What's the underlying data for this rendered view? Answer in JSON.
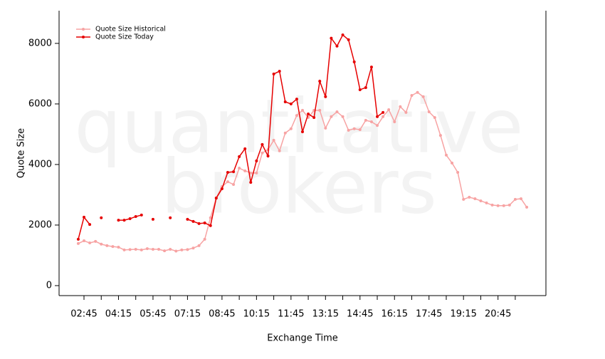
{
  "chart_data": {
    "type": "line",
    "watermark": [
      "quantitative",
      "brokers"
    ],
    "x_label": "Exchange Time",
    "y_label": "Quote Size",
    "x": [
      150,
      165,
      180,
      195,
      210,
      225,
      240,
      255,
      270,
      285,
      300,
      315,
      330,
      345,
      360,
      375,
      390,
      405,
      420,
      435,
      450,
      465,
      480,
      495,
      510,
      525,
      540,
      555,
      570,
      585,
      600,
      615,
      630,
      645,
      660,
      675,
      690,
      705,
      720,
      735,
      750,
      765,
      780,
      795,
      810,
      825,
      840,
      855,
      870,
      885,
      900,
      915,
      930,
      945,
      960,
      975,
      990,
      1005,
      1020,
      1035,
      1050,
      1065,
      1080,
      1095,
      1110,
      1125,
      1140,
      1155,
      1170,
      1185,
      1200,
      1215,
      1230,
      1245,
      1260,
      1275,
      1290,
      1305,
      1320
    ],
    "series": [
      {
        "name": "Quote Size Historical",
        "color": "#f7a3a3",
        "values": [
          1390,
          1480,
          1410,
          1460,
          1370,
          1320,
          1290,
          1270,
          1180,
          1190,
          1200,
          1180,
          1220,
          1200,
          1200,
          1150,
          1200,
          1140,
          1180,
          1190,
          1240,
          1320,
          1530,
          2240,
          2900,
          3270,
          3430,
          3340,
          3880,
          3790,
          3720,
          3720,
          4380,
          4490,
          4800,
          4450,
          5040,
          5180,
          5620,
          5790,
          5550,
          5790,
          5790,
          5200,
          5580,
          5740,
          5580,
          5130,
          5180,
          5150,
          5460,
          5410,
          5290,
          5580,
          5810,
          5410,
          5910,
          5720,
          6280,
          6380,
          6240,
          5740,
          5550,
          4960,
          4310,
          4050,
          3740,
          2850,
          2920,
          2870,
          2800,
          2730,
          2660,
          2640,
          2640,
          2660,
          2850,
          2870,
          2590
        ]
      },
      {
        "name": "Quote Size Today",
        "color": "#e60000",
        "values": [
          1530,
          2260,
          2020,
          null,
          2240,
          null,
          null,
          2160,
          2160,
          2210,
          2280,
          2330,
          null,
          2190,
          null,
          null,
          2240,
          null,
          null,
          2190,
          2120,
          2050,
          2070,
          1980,
          2890,
          3200,
          3740,
          3760,
          4260,
          4520,
          3410,
          4120,
          4660,
          4280,
          6990,
          7080,
          6070,
          6000,
          6160,
          5080,
          5670,
          5550,
          6750,
          6240,
          8170,
          7910,
          8280,
          8120,
          7390,
          6470,
          6540,
          7220,
          5580,
          5720,
          null,
          null,
          null,
          null,
          null,
          null,
          null,
          null,
          null,
          null,
          null,
          null,
          null,
          null,
          null,
          null,
          null,
          null,
          null,
          null,
          null,
          null,
          null,
          null,
          null
        ]
      }
    ],
    "xlim": [
      100,
      1370
    ],
    "xticks": [
      {
        "value": 165,
        "label": "02:45"
      },
      {
        "value": 255,
        "label": "04:15"
      },
      {
        "value": 345,
        "label": "05:45"
      },
      {
        "value": 435,
        "label": "07:15"
      },
      {
        "value": 525,
        "label": "08:45"
      },
      {
        "value": 615,
        "label": "10:15"
      },
      {
        "value": 705,
        "label": "11:45"
      },
      {
        "value": 795,
        "label": "13:15"
      },
      {
        "value": 885,
        "label": "14:45"
      },
      {
        "value": 975,
        "label": "16:15"
      },
      {
        "value": 1065,
        "label": "17:45"
      },
      {
        "value": 1155,
        "label": "19:15"
      },
      {
        "value": 1245,
        "label": "20:45"
      }
    ],
    "xticks_minor": [
      210,
      300,
      390,
      480,
      570,
      660,
      750,
      840,
      930,
      1020,
      1110,
      1200,
      1290
    ],
    "ylim": [
      -330,
      9080
    ],
    "yticks": [
      0,
      2000,
      4000,
      6000,
      8000
    ],
    "legend": "upper-left"
  }
}
